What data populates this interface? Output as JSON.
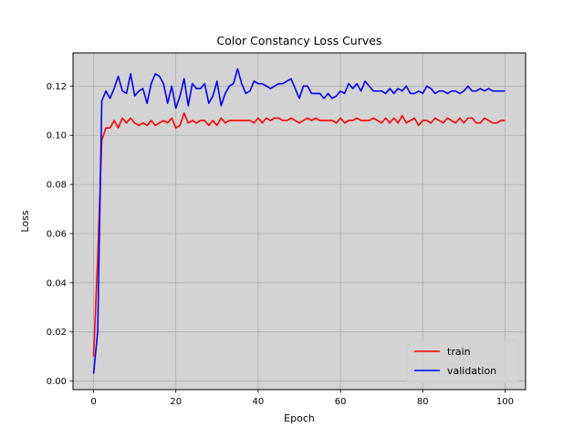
{
  "chart_data": {
    "type": "line",
    "title": "Color Constancy Loss Curves",
    "xlabel": "Epoch",
    "ylabel": "Loss",
    "xlim": [
      -5,
      105
    ],
    "ylim": [
      -0.0035,
      0.1335
    ],
    "x_ticks": [
      0,
      20,
      40,
      60,
      80,
      100
    ],
    "x_tick_labels": [
      "0",
      "20",
      "40",
      "60",
      "80",
      "100"
    ],
    "y_ticks": [
      0.0,
      0.02,
      0.04,
      0.06,
      0.08,
      0.1,
      0.12
    ],
    "y_tick_labels": [
      "0.00",
      "0.02",
      "0.04",
      "0.06",
      "0.08",
      "0.10",
      "0.12"
    ],
    "grid": true,
    "background": "#d3d3d3",
    "legend_position": "lower-right",
    "x": [
      0,
      1,
      2,
      3,
      4,
      5,
      6,
      7,
      8,
      9,
      10,
      11,
      12,
      13,
      14,
      15,
      16,
      17,
      18,
      19,
      20,
      21,
      22,
      23,
      24,
      25,
      26,
      27,
      28,
      29,
      30,
      31,
      32,
      33,
      34,
      35,
      36,
      37,
      38,
      39,
      40,
      41,
      42,
      43,
      44,
      45,
      46,
      47,
      48,
      49,
      50,
      51,
      52,
      53,
      54,
      55,
      56,
      57,
      58,
      59,
      60,
      61,
      62,
      63,
      64,
      65,
      66,
      67,
      68,
      69,
      70,
      71,
      72,
      73,
      74,
      75,
      76,
      77,
      78,
      79,
      80,
      81,
      82,
      83,
      84,
      85,
      86,
      87,
      88,
      89,
      90,
      91,
      92,
      93,
      94,
      95,
      96,
      97,
      98,
      99,
      100
    ],
    "series": [
      {
        "name": "train",
        "color": "#ff0000",
        "values": [
          0.01,
          0.05,
          0.098,
          0.103,
          0.103,
          0.106,
          0.103,
          0.107,
          0.105,
          0.107,
          0.105,
          0.104,
          0.105,
          0.104,
          0.106,
          0.104,
          0.105,
          0.106,
          0.105,
          0.107,
          0.103,
          0.104,
          0.109,
          0.105,
          0.106,
          0.105,
          0.106,
          0.106,
          0.104,
          0.106,
          0.104,
          0.107,
          0.105,
          0.106,
          0.106,
          0.106,
          0.106,
          0.106,
          0.106,
          0.105,
          0.107,
          0.105,
          0.107,
          0.106,
          0.107,
          0.107,
          0.106,
          0.106,
          0.107,
          0.106,
          0.105,
          0.106,
          0.107,
          0.106,
          0.107,
          0.106,
          0.106,
          0.106,
          0.106,
          0.105,
          0.107,
          0.105,
          0.106,
          0.106,
          0.107,
          0.106,
          0.106,
          0.106,
          0.107,
          0.106,
          0.105,
          0.107,
          0.105,
          0.107,
          0.105,
          0.108,
          0.105,
          0.106,
          0.107,
          0.104,
          0.106,
          0.106,
          0.105,
          0.107,
          0.106,
          0.105,
          0.107,
          0.106,
          0.105,
          0.107,
          0.105,
          0.107,
          0.107,
          0.105,
          0.105,
          0.107,
          0.106,
          0.105,
          0.105,
          0.106,
          0.106
        ]
      },
      {
        "name": "validation",
        "color": "#0000ff",
        "values": [
          0.003,
          0.02,
          0.114,
          0.118,
          0.115,
          0.119,
          0.124,
          0.118,
          0.117,
          0.125,
          0.116,
          0.118,
          0.119,
          0.113,
          0.121,
          0.125,
          0.124,
          0.121,
          0.113,
          0.12,
          0.111,
          0.116,
          0.123,
          0.112,
          0.121,
          0.119,
          0.119,
          0.121,
          0.113,
          0.116,
          0.122,
          0.112,
          0.117,
          0.12,
          0.121,
          0.127,
          0.121,
          0.117,
          0.118,
          0.122,
          0.121,
          0.121,
          0.12,
          0.119,
          0.12,
          0.121,
          0.121,
          0.122,
          0.123,
          0.119,
          0.115,
          0.12,
          0.12,
          0.117,
          0.117,
          0.117,
          0.115,
          0.117,
          0.115,
          0.116,
          0.118,
          0.117,
          0.121,
          0.119,
          0.121,
          0.118,
          0.122,
          0.12,
          0.118,
          0.118,
          0.118,
          0.117,
          0.119,
          0.117,
          0.119,
          0.118,
          0.12,
          0.117,
          0.117,
          0.118,
          0.117,
          0.12,
          0.119,
          0.117,
          0.118,
          0.118,
          0.117,
          0.118,
          0.118,
          0.117,
          0.118,
          0.12,
          0.118,
          0.118,
          0.119,
          0.118,
          0.119,
          0.118,
          0.118,
          0.118,
          0.118
        ]
      }
    ]
  }
}
